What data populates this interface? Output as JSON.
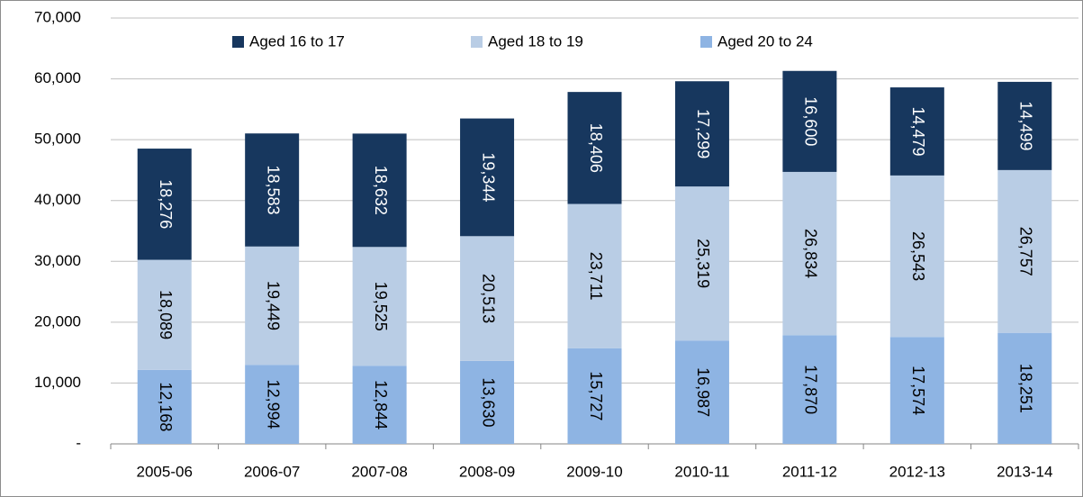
{
  "chart_data": {
    "type": "stacked_bar",
    "categories": [
      "2005-06",
      "2006-07",
      "2007-08",
      "2008-09",
      "2009-10",
      "2010-11",
      "2011-12",
      "2012-13",
      "2013-14"
    ],
    "series": [
      {
        "name": "Aged 16 to 17",
        "color": "#17375e",
        "label_color": "#ffffff",
        "values": [
          18276,
          18583,
          18632,
          19344,
          18406,
          17299,
          16600,
          14479,
          14499
        ],
        "value_labels": [
          "18,276",
          "18,583",
          "18,632",
          "19,344",
          "18,406",
          "17,299",
          "16,600",
          "14,479",
          "14,499"
        ]
      },
      {
        "name": "Aged 18 to 19",
        "color": "#b9cde5",
        "label_color": "#000000",
        "values": [
          18089,
          19449,
          19525,
          20513,
          23711,
          25319,
          26834,
          26543,
          26757
        ],
        "value_labels": [
          "18,089",
          "19,449",
          "19,525",
          "20,513",
          "23,711",
          "25,319",
          "26,834",
          "26,543",
          "26,757"
        ]
      },
      {
        "name": "Aged 20 to 24",
        "color": "#8eb4e3",
        "label_color": "#000000",
        "values": [
          12168,
          12994,
          12844,
          13630,
          15727,
          16987,
          17870,
          17574,
          18251
        ],
        "value_labels": [
          "12,168",
          "12,994",
          "12,844",
          "13,630",
          "15,727",
          "16,987",
          "17,870",
          "17,574",
          "18,251"
        ]
      }
    ],
    "ylim": [
      0,
      70000
    ],
    "yticks": [
      {
        "value": 0,
        "label": "-"
      },
      {
        "value": 10000,
        "label": "10,000"
      },
      {
        "value": 20000,
        "label": "20,000"
      },
      {
        "value": 30000,
        "label": "30,000"
      },
      {
        "value": 40000,
        "label": "40,000"
      },
      {
        "value": 50000,
        "label": "50,000"
      },
      {
        "value": 60000,
        "label": "60,000"
      },
      {
        "value": 70000,
        "label": "70,000"
      }
    ],
    "grid": true,
    "legend": "top"
  }
}
